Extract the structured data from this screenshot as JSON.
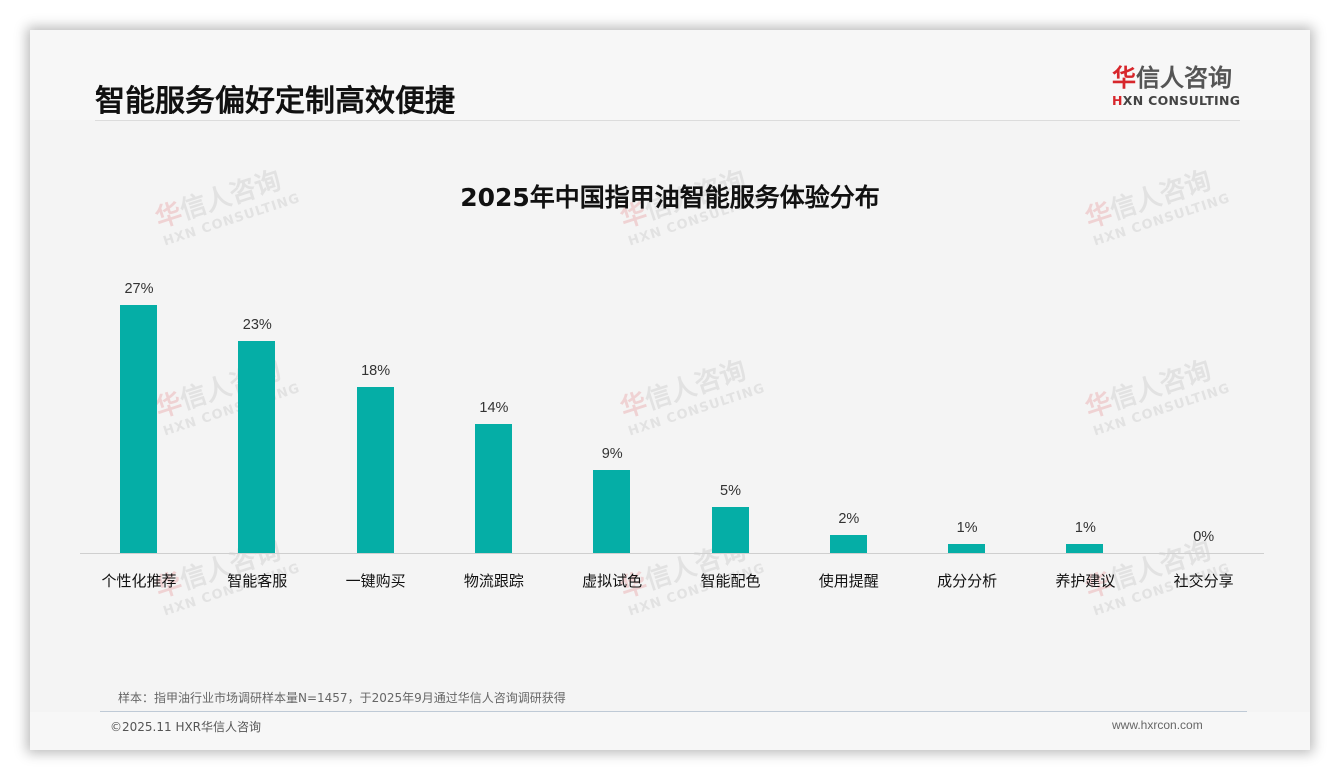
{
  "header": {
    "title": "智能服务偏好定制高效便捷",
    "logo": {
      "cn_red": "华",
      "cn_rest": "信人咨询",
      "en_red": "H",
      "en_rest": "XN CONSULTING"
    }
  },
  "watermark": {
    "cn_red": "华",
    "cn_rest": "信人咨询",
    "en": "HXN CONSULTING"
  },
  "chart_data": {
    "type": "bar",
    "title": "2025年中国指甲油智能服务体验分布",
    "xlabel": "",
    "ylabel": "",
    "ylim": [
      0,
      27
    ],
    "grid": false,
    "legend": null,
    "bar_color": "#05aea6",
    "categories": [
      "个性化推荐",
      "智能客服",
      "一键购买",
      "物流跟踪",
      "虚拟试色",
      "智能配色",
      "使用提醒",
      "成分分析",
      "养护建议",
      "社交分享"
    ],
    "values": [
      27,
      23,
      18,
      14,
      9,
      5,
      2,
      1,
      1,
      0
    ],
    "value_labels": [
      "27%",
      "23%",
      "18%",
      "14%",
      "9%",
      "5%",
      "2%",
      "1%",
      "1%",
      "0%"
    ]
  },
  "footer": {
    "note": "样本：指甲油行业市场调研样本量N=1457，于2025年9月通过华信人咨询调研获得",
    "copyright": "©2025.11 HXR华信人咨询",
    "website": "www.hxrcon.com"
  }
}
